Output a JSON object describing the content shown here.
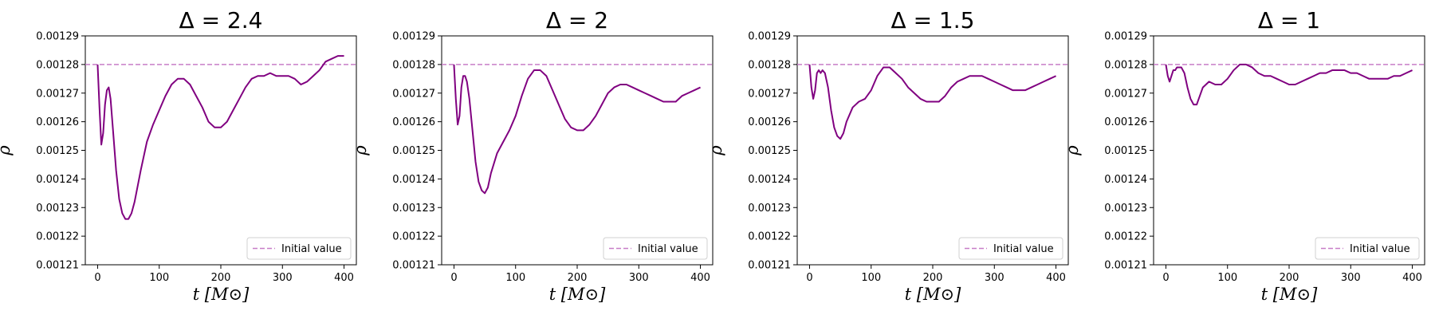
{
  "chart_data": [
    {
      "type": "line",
      "title": "Δ = 2.4",
      "xlabel": "t [M⊙]",
      "ylabel": "ρ",
      "xlim": [
        -20,
        420
      ],
      "ylim": [
        0.00121,
        0.00129
      ],
      "xticks": [
        "0",
        "100",
        "200",
        "300",
        "400"
      ],
      "yticks": [
        "0.00121",
        "0.00122",
        "0.00123",
        "0.00124",
        "0.00125",
        "0.00126",
        "0.00127",
        "0.00128",
        "0.00129"
      ],
      "reference": {
        "label": "Initial value",
        "y": 0.00128,
        "style": "dashed"
      },
      "legend": "lower-right",
      "grid": false,
      "line_color": "#800080",
      "ref_color": "#c77dc7",
      "series": [
        {
          "x": [
            0,
            3,
            6,
            9,
            12,
            15,
            18,
            21,
            25,
            30,
            35,
            40,
            45,
            50,
            55,
            60,
            70,
            80,
            90,
            100,
            110,
            120,
            130,
            140,
            150,
            160,
            170,
            180,
            190,
            200,
            210,
            220,
            230,
            240,
            250,
            260,
            270,
            280,
            290,
            300,
            310,
            320,
            330,
            340,
            350,
            360,
            370,
            380,
            390,
            400
          ],
          "y": [
            0.00128,
            0.001265,
            0.001252,
            0.001256,
            0.001266,
            0.001271,
            0.001272,
            0.001268,
            0.001257,
            0.001243,
            0.001233,
            0.001228,
            0.001226,
            0.001226,
            0.001228,
            0.001232,
            0.001243,
            0.001253,
            0.001259,
            0.001264,
            0.001269,
            0.001273,
            0.001275,
            0.001275,
            0.001273,
            0.001269,
            0.001265,
            0.00126,
            0.001258,
            0.001258,
            0.00126,
            0.001264,
            0.001268,
            0.001272,
            0.001275,
            0.001276,
            0.001276,
            0.001277,
            0.001276,
            0.001276,
            0.001276,
            0.001275,
            0.001273,
            0.001274,
            0.001276,
            0.001278,
            0.001281,
            0.001282,
            0.001283,
            0.001283
          ]
        }
      ]
    },
    {
      "type": "line",
      "title": "Δ = 2",
      "xlabel": "t [M⊙]",
      "ylabel": "ρ",
      "xlim": [
        -20,
        420
      ],
      "ylim": [
        0.00121,
        0.00129
      ],
      "xticks": [
        "0",
        "100",
        "200",
        "300",
        "400"
      ],
      "yticks": [
        "0.00121",
        "0.00122",
        "0.00123",
        "0.00124",
        "0.00125",
        "0.00126",
        "0.00127",
        "0.00128",
        "0.00129"
      ],
      "reference": {
        "label": "Initial value",
        "y": 0.00128,
        "style": "dashed"
      },
      "legend": "lower-right",
      "grid": false,
      "line_color": "#800080",
      "ref_color": "#c77dc7",
      "series": [
        {
          "x": [
            0,
            3,
            6,
            9,
            12,
            15,
            18,
            21,
            25,
            30,
            35,
            40,
            45,
            50,
            55,
            60,
            70,
            80,
            90,
            100,
            110,
            120,
            130,
            140,
            150,
            160,
            170,
            180,
            190,
            200,
            210,
            220,
            230,
            240,
            250,
            260,
            270,
            280,
            290,
            300,
            310,
            320,
            330,
            340,
            350,
            360,
            370,
            380,
            390,
            400
          ],
          "y": [
            0.00128,
            0.001268,
            0.001259,
            0.001262,
            0.001272,
            0.001276,
            0.001276,
            0.001274,
            0.001268,
            0.001257,
            0.001246,
            0.001239,
            0.001236,
            0.001235,
            0.001237,
            0.001242,
            0.001249,
            0.001253,
            0.001257,
            0.001262,
            0.001269,
            0.001275,
            0.001278,
            0.001278,
            0.001276,
            0.001271,
            0.001266,
            0.001261,
            0.001258,
            0.001257,
            0.001257,
            0.001259,
            0.001262,
            0.001266,
            0.00127,
            0.001272,
            0.001273,
            0.001273,
            0.001272,
            0.001271,
            0.00127,
            0.001269,
            0.001268,
            0.001267,
            0.001267,
            0.001267,
            0.001269,
            0.00127,
            0.001271,
            0.001272
          ]
        }
      ]
    },
    {
      "type": "line",
      "title": "Δ = 1.5",
      "xlabel": "t [M⊙]",
      "ylabel": "ρ",
      "xlim": [
        -20,
        420
      ],
      "ylim": [
        0.00121,
        0.00129
      ],
      "xticks": [
        "0",
        "100",
        "200",
        "300",
        "400"
      ],
      "yticks": [
        "0.00121",
        "0.00122",
        "0.00123",
        "0.00124",
        "0.00125",
        "0.00126",
        "0.00127",
        "0.00128",
        "0.00129"
      ],
      "reference": {
        "label": "Initial value",
        "y": 0.00128,
        "style": "dashed"
      },
      "legend": "lower-right",
      "grid": false,
      "line_color": "#800080",
      "ref_color": "#c77dc7",
      "series": [
        {
          "x": [
            0,
            3,
            6,
            9,
            12,
            15,
            18,
            21,
            25,
            30,
            35,
            40,
            45,
            50,
            55,
            60,
            70,
            80,
            90,
            100,
            110,
            120,
            130,
            140,
            150,
            160,
            170,
            180,
            190,
            200,
            210,
            220,
            230,
            240,
            250,
            260,
            270,
            280,
            290,
            300,
            310,
            320,
            330,
            340,
            350,
            360,
            370,
            380,
            390,
            400
          ],
          "y": [
            0.00128,
            0.001272,
            0.001268,
            0.001271,
            0.001277,
            0.001278,
            0.001277,
            0.001278,
            0.001277,
            0.001272,
            0.001264,
            0.001258,
            0.001255,
            0.001254,
            0.001256,
            0.00126,
            0.001265,
            0.001267,
            0.001268,
            0.001271,
            0.001276,
            0.001279,
            0.001279,
            0.001277,
            0.001275,
            0.001272,
            0.00127,
            0.001268,
            0.001267,
            0.001267,
            0.001267,
            0.001269,
            0.001272,
            0.001274,
            0.001275,
            0.001276,
            0.001276,
            0.001276,
            0.001275,
            0.001274,
            0.001273,
            0.001272,
            0.001271,
            0.001271,
            0.001271,
            0.001272,
            0.001273,
            0.001274,
            0.001275,
            0.001276
          ]
        }
      ]
    },
    {
      "type": "line",
      "title": "Δ = 1",
      "xlabel": "t [M⊙]",
      "ylabel": "ρ",
      "xlim": [
        -20,
        420
      ],
      "ylim": [
        0.00121,
        0.00129
      ],
      "xticks": [
        "0",
        "100",
        "200",
        "300",
        "400"
      ],
      "yticks": [
        "0.00121",
        "0.00122",
        "0.00123",
        "0.00124",
        "0.00125",
        "0.00126",
        "0.00127",
        "0.00128",
        "0.00129"
      ],
      "reference": {
        "label": "Initial value",
        "y": 0.00128,
        "style": "dashed"
      },
      "legend": "lower-right",
      "grid": false,
      "line_color": "#800080",
      "ref_color": "#c77dc7",
      "series": [
        {
          "x": [
            0,
            3,
            6,
            9,
            12,
            15,
            18,
            21,
            25,
            30,
            35,
            40,
            45,
            50,
            55,
            60,
            70,
            80,
            90,
            100,
            110,
            120,
            130,
            140,
            150,
            160,
            170,
            180,
            190,
            200,
            210,
            220,
            230,
            240,
            250,
            260,
            270,
            280,
            290,
            300,
            310,
            320,
            330,
            340,
            350,
            360,
            370,
            380,
            390,
            400
          ],
          "y": [
            0.00128,
            0.001276,
            0.001274,
            0.001276,
            0.001278,
            0.001278,
            0.001279,
            0.001279,
            0.001279,
            0.001277,
            0.001272,
            0.001268,
            0.001266,
            0.001266,
            0.001269,
            0.001272,
            0.001274,
            0.001273,
            0.001273,
            0.001275,
            0.001278,
            0.00128,
            0.00128,
            0.001279,
            0.001277,
            0.001276,
            0.001276,
            0.001275,
            0.001274,
            0.001273,
            0.001273,
            0.001274,
            0.001275,
            0.001276,
            0.001277,
            0.001277,
            0.001278,
            0.001278,
            0.001278,
            0.001277,
            0.001277,
            0.001276,
            0.001275,
            0.001275,
            0.001275,
            0.001275,
            0.001276,
            0.001276,
            0.001277,
            0.001278
          ]
        }
      ]
    }
  ]
}
